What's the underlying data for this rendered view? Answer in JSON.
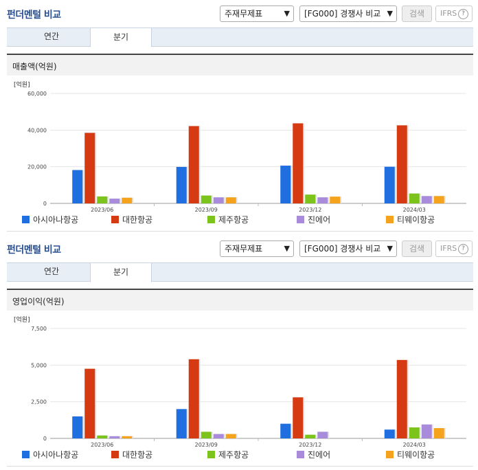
{
  "header": {
    "title": "펀더멘털 비교",
    "select_statement": "주재무제표",
    "select_peer": "[FG000] 경쟁사 비교",
    "search_label": "검색",
    "ifrs_label": "IFRS",
    "help_glyph": "?"
  },
  "tabs": [
    {
      "label": "연간",
      "active": false
    },
    {
      "label": "분기",
      "active": true
    }
  ],
  "series_colors": [
    "#1f6fe0",
    "#d63a12",
    "#7cc41c",
    "#a98bdc",
    "#f5a21c"
  ],
  "legend": [
    "아시아나항공",
    "대한항공",
    "제주항공",
    "진에어",
    "티웨이항공"
  ],
  "charts": [
    {
      "section_title": "매출액(억원)",
      "unit": "[억원]"
    },
    {
      "section_title": "영업이익(억원)",
      "unit": "[억원]"
    }
  ],
  "chart_data": [
    {
      "type": "bar",
      "title": "매출액(억원)",
      "ylabel": "[억원]",
      "categories": [
        "2023/06",
        "2023/09",
        "2023/12",
        "2024/03"
      ],
      "ylim": [
        0,
        60000
      ],
      "yticks": [
        0,
        20000,
        40000,
        60000
      ],
      "ytick_labels": [
        "0",
        "20,000",
        "40,000",
        "60,000"
      ],
      "grid": true,
      "legend_position": "bottom",
      "series": [
        {
          "name": "아시아나항공",
          "values": [
            18200,
            19900,
            20600,
            20000
          ]
        },
        {
          "name": "대한항공",
          "values": [
            38500,
            42200,
            43700,
            42600
          ]
        },
        {
          "name": "제주항공",
          "values": [
            3800,
            4300,
            4800,
            5400
          ]
        },
        {
          "name": "진에어",
          "values": [
            2600,
            3300,
            3300,
            4000
          ]
        },
        {
          "name": "티웨이항공",
          "values": [
            3100,
            3300,
            3700,
            4000
          ]
        }
      ]
    },
    {
      "type": "bar",
      "title": "영업이익(억원)",
      "ylabel": "[억원]",
      "categories": [
        "2023/06",
        "2023/09",
        "2023/12",
        "2024/03"
      ],
      "ylim": [
        0,
        7500
      ],
      "yticks": [
        0,
        2500,
        5000,
        7500
      ],
      "ytick_labels": [
        "0",
        "2,500",
        "5,000",
        "7,500"
      ],
      "grid": true,
      "legend_position": "bottom",
      "series": [
        {
          "name": "아시아나항공",
          "values": [
            1500,
            2000,
            1000,
            600
          ]
        },
        {
          "name": "대한항공",
          "values": [
            4750,
            5400,
            2800,
            5350
          ]
        },
        {
          "name": "제주항공",
          "values": [
            200,
            450,
            250,
            750
          ]
        },
        {
          "name": "진에어",
          "values": [
            150,
            300,
            450,
            950
          ]
        },
        {
          "name": "티웨이항공",
          "values": [
            150,
            300,
            0,
            700
          ]
        }
      ]
    }
  ]
}
